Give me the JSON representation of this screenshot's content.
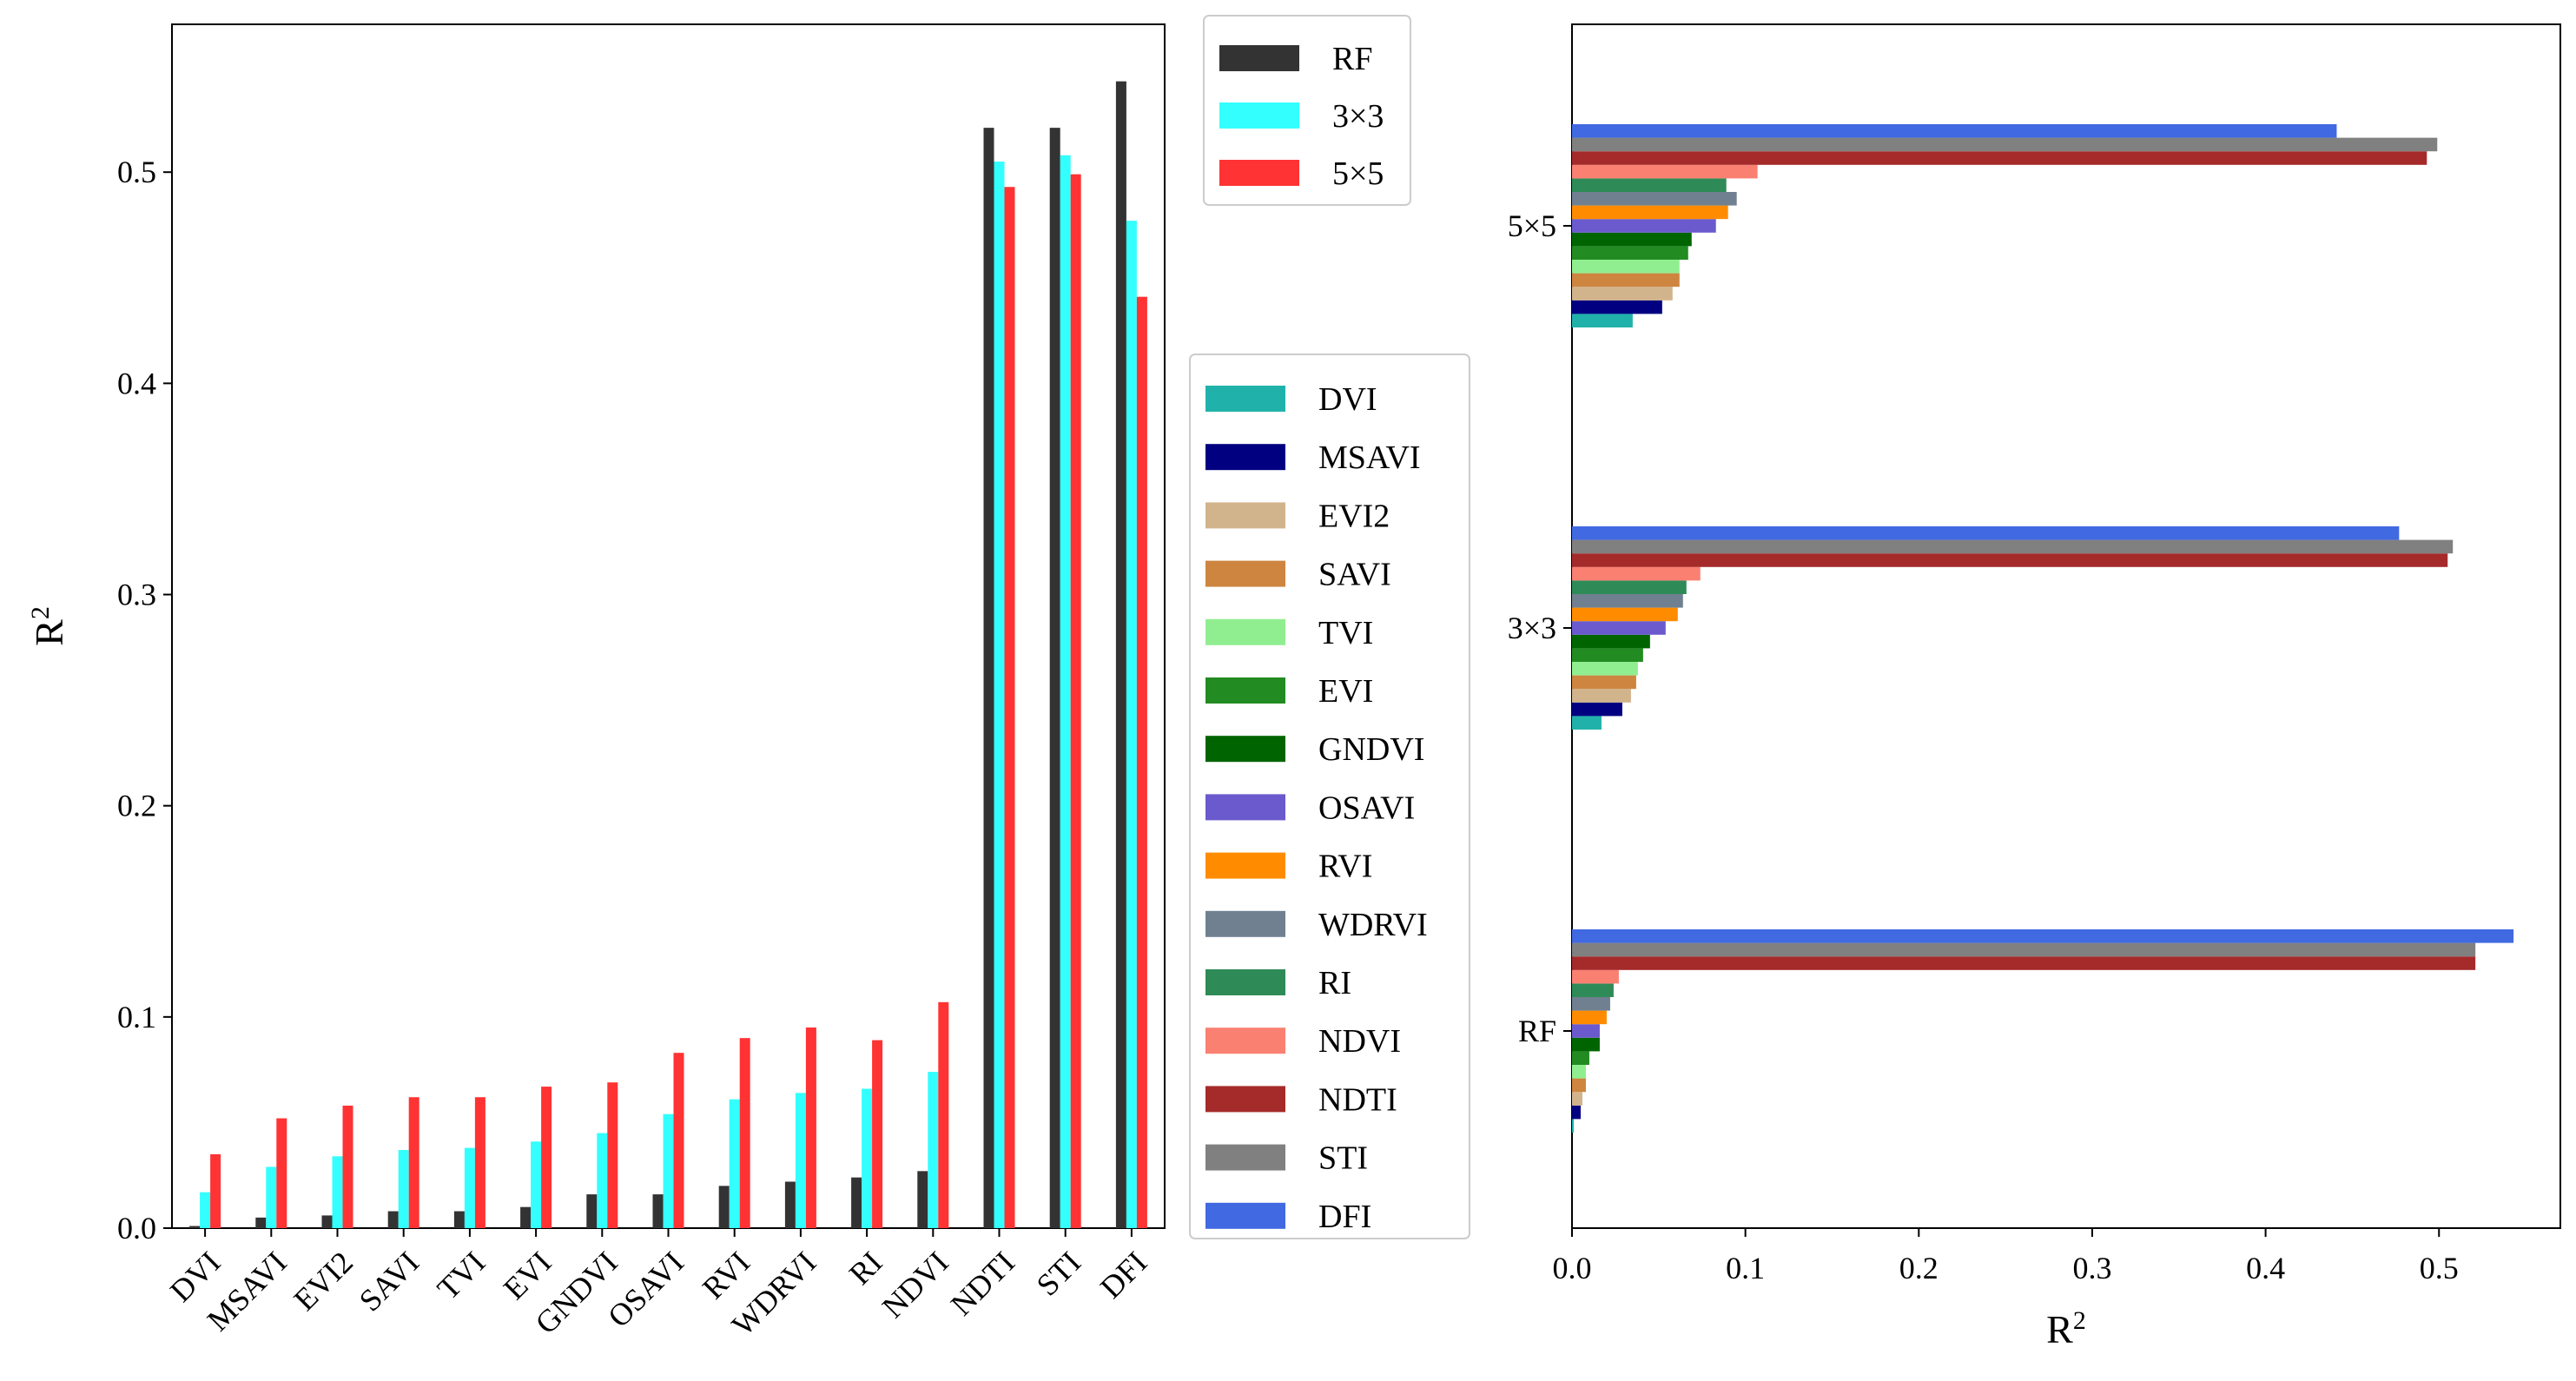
{
  "chart_data": [
    {
      "type": "bar",
      "orientation": "vertical",
      "categories": [
        "DVI",
        "MSAVI",
        "EVI2",
        "SAVI",
        "TVI",
        "EVI",
        "GNDVI",
        "OSAVI",
        "RVI",
        "WDRVI",
        "RI",
        "NDVI",
        "NDTI",
        "STI",
        "DFI"
      ],
      "series": [
        {
          "name": "RF",
          "color": "#333333",
          "values": [
            0.001,
            0.005,
            0.006,
            0.008,
            0.008,
            0.01,
            0.016,
            0.016,
            0.02,
            0.022,
            0.024,
            0.027,
            0.521,
            0.521,
            0.543
          ]
        },
        {
          "name": "3×3",
          "color": "#33ffff",
          "values": [
            0.017,
            0.029,
            0.034,
            0.037,
            0.038,
            0.041,
            0.045,
            0.054,
            0.061,
            0.064,
            0.066,
            0.074,
            0.505,
            0.508,
            0.477
          ]
        },
        {
          "name": "5×5",
          "color": "#ff3333",
          "values": [
            0.035,
            0.052,
            0.058,
            0.062,
            0.062,
            0.067,
            0.069,
            0.083,
            0.09,
            0.095,
            0.089,
            0.107,
            0.493,
            0.499,
            0.441
          ]
        }
      ],
      "ylabel_base": "R",
      "ylabel_sup": "2",
      "ylim": [
        0,
        0.57
      ],
      "yticks": [
        "0.0",
        "0.1",
        "0.2",
        "0.3",
        "0.4",
        "0.5"
      ],
      "legend": [
        "RF",
        "3×3",
        "5×5"
      ],
      "legend_position": "outside top-right"
    },
    {
      "type": "bar",
      "orientation": "horizontal",
      "groups": [
        "RF",
        "3×3",
        "5×5"
      ],
      "series": [
        {
          "name": "DVI",
          "color": "#20b2aa",
          "values": [
            0.001,
            0.017,
            0.035
          ]
        },
        {
          "name": "MSAVI",
          "color": "#000080",
          "values": [
            0.005,
            0.029,
            0.052
          ]
        },
        {
          "name": "EVI2",
          "color": "#d2b48c",
          "values": [
            0.006,
            0.034,
            0.058
          ]
        },
        {
          "name": "SAVI",
          "color": "#cd853f",
          "values": [
            0.008,
            0.037,
            0.062
          ]
        },
        {
          "name": "TVI",
          "color": "#90ee90",
          "values": [
            0.008,
            0.038,
            0.062
          ]
        },
        {
          "name": "EVI",
          "color": "#228b22",
          "values": [
            0.01,
            0.041,
            0.067
          ]
        },
        {
          "name": "GNDVI",
          "color": "#006400",
          "values": [
            0.016,
            0.045,
            0.069
          ]
        },
        {
          "name": "OSAVI",
          "color": "#6a5acd",
          "values": [
            0.016,
            0.054,
            0.083
          ]
        },
        {
          "name": "RVI",
          "color": "#ff8c00",
          "values": [
            0.02,
            0.061,
            0.09
          ]
        },
        {
          "name": "WDRVI",
          "color": "#708090",
          "values": [
            0.022,
            0.064,
            0.095
          ]
        },
        {
          "name": "RI",
          "color": "#2e8b57",
          "values": [
            0.024,
            0.066,
            0.089
          ]
        },
        {
          "name": "NDVI",
          "color": "#fa8072",
          "values": [
            0.027,
            0.074,
            0.107
          ]
        },
        {
          "name": "NDTI",
          "color": "#a52a2a",
          "values": [
            0.521,
            0.505,
            0.493
          ]
        },
        {
          "name": "STI",
          "color": "#808080",
          "values": [
            0.521,
            0.508,
            0.499
          ]
        },
        {
          "name": "DFI",
          "color": "#4169e1",
          "values": [
            0.543,
            0.477,
            0.441
          ]
        }
      ],
      "xlabel_base": "R",
      "xlabel_sup": "2",
      "xlim": [
        0,
        0.57
      ],
      "xticks": [
        "0.0",
        "0.1",
        "0.2",
        "0.3",
        "0.4",
        "0.5"
      ],
      "legend_position": "outside left"
    }
  ]
}
